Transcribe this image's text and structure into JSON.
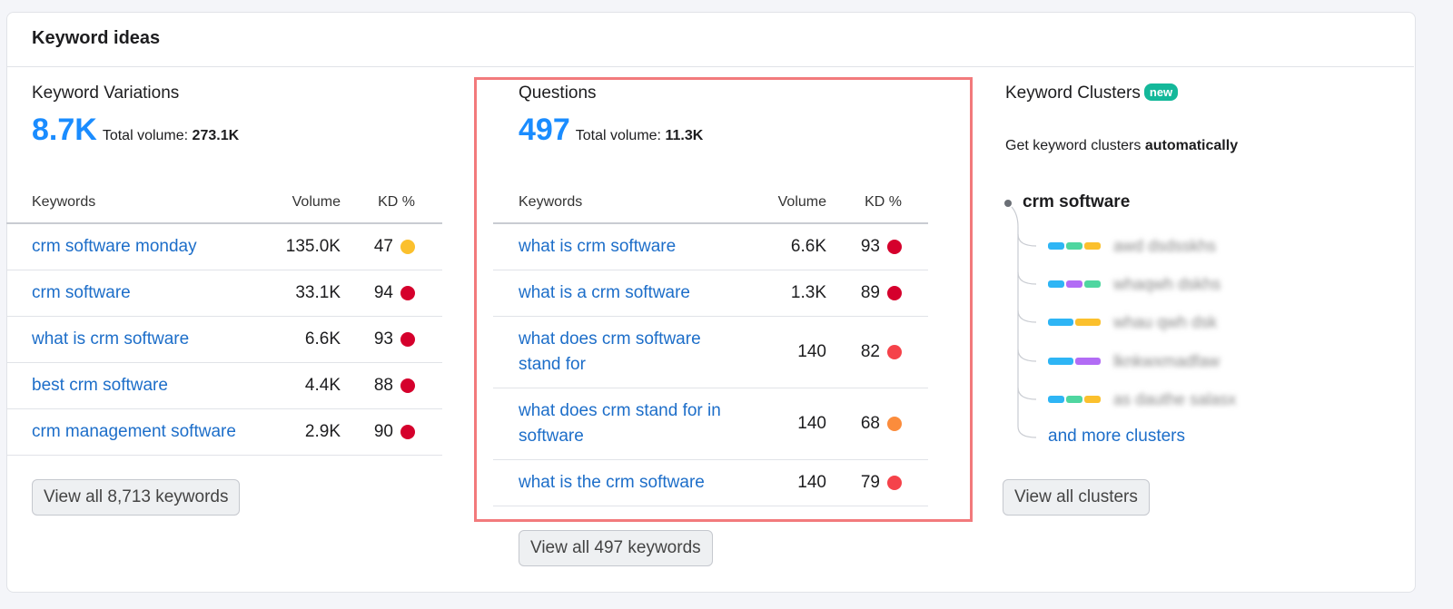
{
  "header": {
    "title": "Keyword ideas"
  },
  "variations": {
    "title": "Keyword Variations",
    "count": "8.7K",
    "total_label": "Total volume:",
    "total": "273.1K",
    "columns": [
      "Keywords",
      "Volume",
      "KD %"
    ],
    "rows": [
      {
        "keyword": "crm software monday",
        "volume": "135.0K",
        "kd": 47,
        "kd_color": "#fbc02d"
      },
      {
        "keyword": "crm software",
        "volume": "33.1K",
        "kd": 94,
        "kd_color": "#d5002c"
      },
      {
        "keyword": "what is crm software",
        "volume": "6.6K",
        "kd": 93,
        "kd_color": "#d5002c"
      },
      {
        "keyword": "best crm software",
        "volume": "4.4K",
        "kd": 88,
        "kd_color": "#d5002c"
      },
      {
        "keyword": "crm management software",
        "volume": "2.9K",
        "kd": 90,
        "kd_color": "#d5002c"
      }
    ],
    "button": "View all 8,713 keywords"
  },
  "questions": {
    "title": "Questions",
    "count": "497",
    "total_label": "Total volume:",
    "total": "11.3K",
    "columns": [
      "Keywords",
      "Volume",
      "KD %"
    ],
    "rows": [
      {
        "keyword": "what is crm software",
        "volume": "6.6K",
        "kd": 93,
        "kd_color": "#d5002c"
      },
      {
        "keyword": "what is a crm software",
        "volume": "1.3K",
        "kd": 89,
        "kd_color": "#d5002c"
      },
      {
        "keyword": "what does crm software stand for",
        "volume": "140",
        "kd": 82,
        "kd_color": "#f5424a"
      },
      {
        "keyword": "what does crm stand for in software",
        "volume": "140",
        "kd": 68,
        "kd_color": "#fb8c3c"
      },
      {
        "keyword": "what is the crm software",
        "volume": "140",
        "kd": 79,
        "kd_color": "#f5424a"
      }
    ],
    "button": "View all 497 keywords"
  },
  "clusters": {
    "title": "Keyword Clusters",
    "badge": "new",
    "subtitle": "Get keyword clusters ",
    "subtitle_bold": "automatically",
    "root": "crm software",
    "items": [
      {
        "label": "awd dsdsskhs",
        "colors": [
          "#2eb5f5",
          "#4fd6a0",
          "#fbc02d"
        ]
      },
      {
        "label": "whaqwh dskhs",
        "colors": [
          "#2eb5f5",
          "#b26cf5",
          "#4fd6a0"
        ]
      },
      {
        "label": "whau qwh dsk",
        "colors": [
          "#2eb5f5",
          "#fbc02d"
        ]
      },
      {
        "label": "lknkwxmadfaw",
        "colors": [
          "#2eb5f5",
          "#b26cf5"
        ]
      },
      {
        "label": "as dauthe salasx",
        "colors": [
          "#2eb5f5",
          "#4fd6a0",
          "#fbc02d"
        ]
      }
    ],
    "more": "and more clusters",
    "button": "View all clusters"
  }
}
